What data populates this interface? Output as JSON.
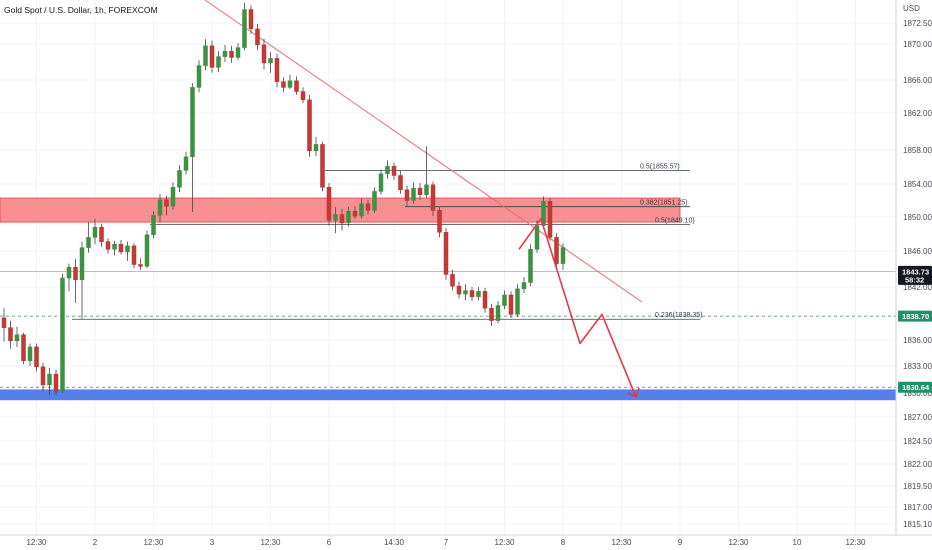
{
  "title": "Gold Spot / U.S. Dollar, 1h, FOREXCOM",
  "currency_label": "USD",
  "colors": {
    "up": "#26a69a",
    "up_body": "#3d9142",
    "down": "#ef5350",
    "down_body": "#c23b37",
    "resistance_zone": "#f77c80",
    "support_zone": "#4d79e8",
    "trendline": "#f06b70",
    "projection": "#e5394b",
    "price_tag_dark": "#131722",
    "price_tag_green": "#22906b",
    "grid": "#f0f3fa"
  },
  "price_tags": [
    {
      "value": 1843.73,
      "label": "1843.73",
      "sub": "58:32",
      "style": "dark"
    },
    {
      "value": 1838.7,
      "label": "1838.70",
      "style": "green"
    },
    {
      "value": 1830.64,
      "label": "1830.64",
      "style": "green"
    }
  ],
  "chart_data": {
    "type": "candlestick",
    "title": "Gold Spot / U.S. Dollar, 1h, FOREXCOM",
    "ylabel": "USD",
    "ylim": [
      1813.5,
      1876.2
    ],
    "y_ticks": [
      "1872.50",
      "1870.00",
      "1866.00",
      "1862.00",
      "1858.00",
      "1854.00",
      "1850.00",
      "1846.00",
      "1842.00",
      "1836.00",
      "1833.00",
      "1830.00",
      "1827.00",
      "1824.50",
      "1822.00",
      "1819.50",
      "1817.00",
      "1815.10"
    ],
    "y_tick_values": [
      1872.5,
      1870,
      1866,
      1862,
      1858,
      1854,
      1850,
      1846,
      1842,
      1836,
      1833,
      1830,
      1827,
      1824.5,
      1822,
      1819.5,
      1817,
      1815.1
    ],
    "x_ticks": [
      "12:30",
      "2",
      "12:30",
      "3",
      "12:30",
      "6",
      "14:30",
      "7",
      "12:30",
      "8",
      "12:30",
      "9",
      "12:30",
      "10",
      "12:30"
    ],
    "x_tick_index": [
      5,
      14,
      23,
      32,
      41,
      50,
      60,
      68,
      77,
      86,
      95,
      104,
      113,
      122,
      131
    ],
    "grid": true,
    "candles": [
      {
        "o": 1838.5,
        "h": 1839.6,
        "l": 1835.8,
        "c": 1837.4
      },
      {
        "o": 1837.4,
        "h": 1838.2,
        "l": 1835.0,
        "c": 1835.9
      },
      {
        "o": 1835.9,
        "h": 1837.5,
        "l": 1835.2,
        "c": 1836.6
      },
      {
        "o": 1836.6,
        "h": 1836.8,
        "l": 1833.2,
        "c": 1833.6
      },
      {
        "o": 1833.6,
        "h": 1835.6,
        "l": 1833.0,
        "c": 1835.2
      },
      {
        "o": 1835.2,
        "h": 1835.6,
        "l": 1832.4,
        "c": 1832.9
      },
      {
        "o": 1832.9,
        "h": 1833.4,
        "l": 1830.2,
        "c": 1830.9
      },
      {
        "o": 1830.9,
        "h": 1832.8,
        "l": 1829.8,
        "c": 1832.1
      },
      {
        "o": 1832.1,
        "h": 1832.6,
        "l": 1829.7,
        "c": 1830.2
      },
      {
        "o": 1830.2,
        "h": 1843.5,
        "l": 1830.0,
        "c": 1843.0
      },
      {
        "o": 1843.0,
        "h": 1844.6,
        "l": 1841.5,
        "c": 1844.2
      },
      {
        "o": 1844.2,
        "h": 1845.1,
        "l": 1840.2,
        "c": 1842.8
      },
      {
        "o": 1842.8,
        "h": 1847.1,
        "l": 1838.4,
        "c": 1846.4
      },
      {
        "o": 1846.4,
        "h": 1849.4,
        "l": 1845.8,
        "c": 1847.6
      },
      {
        "o": 1847.6,
        "h": 1849.8,
        "l": 1846.8,
        "c": 1848.8
      },
      {
        "o": 1848.8,
        "h": 1849.2,
        "l": 1846.5,
        "c": 1847.1
      },
      {
        "o": 1847.1,
        "h": 1847.5,
        "l": 1845.7,
        "c": 1846.2
      },
      {
        "o": 1846.2,
        "h": 1847.2,
        "l": 1845.5,
        "c": 1846.8
      },
      {
        "o": 1846.8,
        "h": 1847.3,
        "l": 1845.6,
        "c": 1845.9
      },
      {
        "o": 1845.9,
        "h": 1847.1,
        "l": 1844.9,
        "c": 1846.6
      },
      {
        "o": 1846.6,
        "h": 1846.9,
        "l": 1844.1,
        "c": 1844.5
      },
      {
        "o": 1844.5,
        "h": 1845.2,
        "l": 1843.9,
        "c": 1844.3
      },
      {
        "o": 1844.3,
        "h": 1848.4,
        "l": 1844.1,
        "c": 1847.9
      },
      {
        "o": 1847.9,
        "h": 1850.7,
        "l": 1847.5,
        "c": 1850.2
      },
      {
        "o": 1850.2,
        "h": 1852.8,
        "l": 1849.4,
        "c": 1852.1
      },
      {
        "o": 1852.1,
        "h": 1852.6,
        "l": 1850.2,
        "c": 1851.3
      },
      {
        "o": 1851.3,
        "h": 1854.2,
        "l": 1850.9,
        "c": 1853.6
      },
      {
        "o": 1853.6,
        "h": 1856.2,
        "l": 1853.0,
        "c": 1855.6
      },
      {
        "o": 1855.6,
        "h": 1857.8,
        "l": 1855.1,
        "c": 1857.2
      },
      {
        "o": 1857.2,
        "h": 1865.6,
        "l": 1850.6,
        "c": 1865.1
      },
      {
        "o": 1865.1,
        "h": 1868.2,
        "l": 1864.5,
        "c": 1867.6
      },
      {
        "o": 1867.6,
        "h": 1870.6,
        "l": 1867.1,
        "c": 1869.8
      },
      {
        "o": 1869.8,
        "h": 1870.4,
        "l": 1866.8,
        "c": 1867.4
      },
      {
        "o": 1867.4,
        "h": 1869.2,
        "l": 1866.9,
        "c": 1868.6
      },
      {
        "o": 1868.6,
        "h": 1869.9,
        "l": 1868.0,
        "c": 1869.2
      },
      {
        "o": 1869.2,
        "h": 1869.8,
        "l": 1867.9,
        "c": 1868.5
      },
      {
        "o": 1868.5,
        "h": 1870.1,
        "l": 1868.2,
        "c": 1869.6
      },
      {
        "o": 1869.6,
        "h": 1874.9,
        "l": 1869.3,
        "c": 1874.1
      },
      {
        "o": 1874.1,
        "h": 1874.6,
        "l": 1871.2,
        "c": 1871.8
      },
      {
        "o": 1871.8,
        "h": 1872.4,
        "l": 1869.3,
        "c": 1869.9
      },
      {
        "o": 1869.9,
        "h": 1870.6,
        "l": 1867.2,
        "c": 1867.9
      },
      {
        "o": 1867.9,
        "h": 1869.1,
        "l": 1866.8,
        "c": 1868.4
      },
      {
        "o": 1868.4,
        "h": 1868.9,
        "l": 1865.1,
        "c": 1865.8
      },
      {
        "o": 1865.8,
        "h": 1866.3,
        "l": 1864.5,
        "c": 1865.1
      },
      {
        "o": 1865.1,
        "h": 1866.6,
        "l": 1864.9,
        "c": 1865.9
      },
      {
        "o": 1865.9,
        "h": 1866.4,
        "l": 1864.2,
        "c": 1864.6
      },
      {
        "o": 1864.6,
        "h": 1865.1,
        "l": 1863.2,
        "c": 1863.6
      },
      {
        "o": 1863.6,
        "h": 1864.2,
        "l": 1857.2,
        "c": 1857.9
      },
      {
        "o": 1857.9,
        "h": 1859.4,
        "l": 1857.3,
        "c": 1858.6
      },
      {
        "o": 1858.6,
        "h": 1858.9,
        "l": 1853.1,
        "c": 1853.6
      },
      {
        "o": 1853.6,
        "h": 1854.1,
        "l": 1849.0,
        "c": 1849.6
      },
      {
        "o": 1849.6,
        "h": 1851.2,
        "l": 1848.1,
        "c": 1850.3
      },
      {
        "o": 1850.3,
        "h": 1851.0,
        "l": 1848.4,
        "c": 1849.3
      },
      {
        "o": 1849.3,
        "h": 1851.2,
        "l": 1848.9,
        "c": 1850.7
      },
      {
        "o": 1850.7,
        "h": 1851.3,
        "l": 1849.8,
        "c": 1850.1
      },
      {
        "o": 1850.1,
        "h": 1852.2,
        "l": 1849.8,
        "c": 1851.6
      },
      {
        "o": 1851.6,
        "h": 1852.1,
        "l": 1850.3,
        "c": 1850.8
      },
      {
        "o": 1850.8,
        "h": 1853.6,
        "l": 1850.5,
        "c": 1853.1
      },
      {
        "o": 1853.1,
        "h": 1855.7,
        "l": 1852.7,
        "c": 1855.2
      },
      {
        "o": 1855.2,
        "h": 1856.8,
        "l": 1854.6,
        "c": 1856.1
      },
      {
        "o": 1856.1,
        "h": 1856.5,
        "l": 1854.5,
        "c": 1855.0
      },
      {
        "o": 1855.0,
        "h": 1855.6,
        "l": 1852.8,
        "c": 1853.3
      },
      {
        "o": 1853.3,
        "h": 1853.8,
        "l": 1851.3,
        "c": 1852.0
      },
      {
        "o": 1852.0,
        "h": 1854.2,
        "l": 1851.6,
        "c": 1853.5
      },
      {
        "o": 1853.5,
        "h": 1854.1,
        "l": 1852.1,
        "c": 1852.7
      },
      {
        "o": 1852.7,
        "h": 1858.4,
        "l": 1852.3,
        "c": 1853.9
      },
      {
        "o": 1853.9,
        "h": 1854.3,
        "l": 1850.1,
        "c": 1850.8
      },
      {
        "o": 1850.8,
        "h": 1851.2,
        "l": 1847.6,
        "c": 1848.2
      },
      {
        "o": 1848.2,
        "h": 1848.7,
        "l": 1842.8,
        "c": 1843.4
      },
      {
        "o": 1843.4,
        "h": 1843.9,
        "l": 1841.6,
        "c": 1842.1
      },
      {
        "o": 1842.1,
        "h": 1842.6,
        "l": 1840.7,
        "c": 1841.2
      },
      {
        "o": 1841.2,
        "h": 1842.3,
        "l": 1840.5,
        "c": 1841.6
      },
      {
        "o": 1841.6,
        "h": 1842.0,
        "l": 1840.4,
        "c": 1840.9
      },
      {
        "o": 1840.9,
        "h": 1842.0,
        "l": 1840.5,
        "c": 1841.5
      },
      {
        "o": 1841.5,
        "h": 1841.9,
        "l": 1839.1,
        "c": 1839.6
      },
      {
        "o": 1839.6,
        "h": 1840.1,
        "l": 1837.6,
        "c": 1838.2
      },
      {
        "o": 1838.2,
        "h": 1840.4,
        "l": 1837.9,
        "c": 1839.9
      },
      {
        "o": 1839.9,
        "h": 1841.6,
        "l": 1839.5,
        "c": 1841.1
      },
      {
        "o": 1841.1,
        "h": 1841.5,
        "l": 1838.5,
        "c": 1838.9
      },
      {
        "o": 1838.9,
        "h": 1842.3,
        "l": 1838.6,
        "c": 1841.8
      },
      {
        "o": 1841.8,
        "h": 1843.1,
        "l": 1841.3,
        "c": 1842.5
      },
      {
        "o": 1842.5,
        "h": 1846.8,
        "l": 1842.1,
        "c": 1846.2
      },
      {
        "o": 1846.2,
        "h": 1849.6,
        "l": 1845.8,
        "c": 1849.0
      },
      {
        "o": 1849.0,
        "h": 1852.5,
        "l": 1848.6,
        "c": 1851.9
      },
      {
        "o": 1851.9,
        "h": 1852.3,
        "l": 1847.2,
        "c": 1847.6
      },
      {
        "o": 1847.6,
        "h": 1848.1,
        "l": 1844.1,
        "c": 1844.6
      },
      {
        "o": 1844.6,
        "h": 1846.9,
        "l": 1843.9,
        "c": 1846.4
      }
    ],
    "zones": [
      {
        "name": "resistance",
        "from": 1849.4,
        "to": 1852.3
      },
      {
        "name": "support",
        "from": 1829.1,
        "to": 1830.4
      }
    ],
    "fib_levels": [
      {
        "label": "0.5(1855.57)",
        "value": 1855.57
      },
      {
        "label": "0.382(1851.25)",
        "value": 1851.25
      },
      {
        "label": "0.5(1849.10)",
        "value": 1849.1
      },
      {
        "label": "0.236(1838.35)",
        "value": 1838.35
      }
    ],
    "current_price": 1843.73,
    "dashed_levels": [
      1838.7,
      1830.64
    ]
  }
}
